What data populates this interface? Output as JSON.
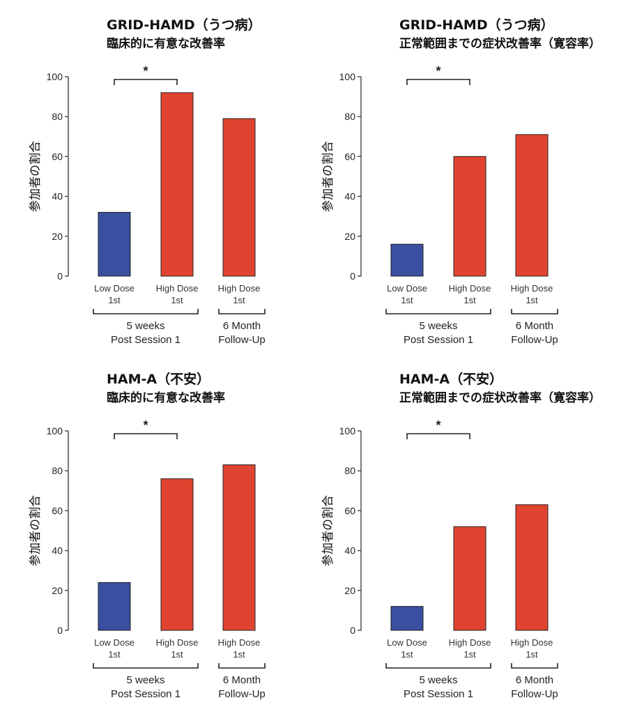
{
  "colors": {
    "low_dose": "#3a4fa0",
    "high_dose": "#e04430",
    "axis": "#333333",
    "bar_stroke": "#222222"
  },
  "group_labels": {
    "g1_line1": "5 weeks",
    "g1_line2": "Post Session 1",
    "g2_line1": "6 Month",
    "g2_line2": "Follow-Up"
  },
  "chart_data": [
    {
      "type": "bar",
      "title": "GRID-HAMD（うつ病）",
      "subtitle": "臨床的に有意な改善率",
      "ylabel": "参加者の割合",
      "ylim": [
        0,
        100
      ],
      "yticks": [
        "0",
        "20",
        "40",
        "60",
        "80",
        "100"
      ],
      "categories": [
        [
          "Low Dose",
          "1st"
        ],
        [
          "High Dose",
          "1st"
        ],
        [
          "High Dose",
          "1st"
        ]
      ],
      "values": [
        32,
        92,
        79
      ],
      "significance": "*"
    },
    {
      "type": "bar",
      "title": "GRID-HAMD（うつ病）",
      "subtitle": "正常範囲までの症状改善率（寛容率）",
      "ylabel": "参加者の割合",
      "ylim": [
        0,
        100
      ],
      "yticks": [
        "0",
        "20",
        "40",
        "60",
        "80",
        "100"
      ],
      "categories": [
        [
          "Low Dose",
          "1st"
        ],
        [
          "High Dose",
          "1st"
        ],
        [
          "High Dose",
          "1st"
        ]
      ],
      "values": [
        16,
        60,
        71
      ],
      "significance": "*"
    },
    {
      "type": "bar",
      "title": "HAM-A（不安）",
      "subtitle": "臨床的に有意な改善率",
      "ylabel": "参加者の割合",
      "ylim": [
        0,
        100
      ],
      "yticks": [
        "0",
        "20",
        "40",
        "60",
        "80",
        "100"
      ],
      "categories": [
        [
          "Low Dose",
          "1st"
        ],
        [
          "High Dose",
          "1st"
        ],
        [
          "High Dose",
          "1st"
        ]
      ],
      "values": [
        24,
        76,
        83
      ],
      "significance": "*"
    },
    {
      "type": "bar",
      "title": "HAM-A（不安）",
      "subtitle": "正常範囲までの症状改善率（寛容率）",
      "ylabel": "参加者の割合",
      "ylim": [
        0,
        100
      ],
      "yticks": [
        "0",
        "20",
        "40",
        "60",
        "80",
        "100"
      ],
      "categories": [
        [
          "Low Dose",
          "1st"
        ],
        [
          "High Dose",
          "1st"
        ],
        [
          "High Dose",
          "1st"
        ]
      ],
      "values": [
        12,
        52,
        63
      ],
      "significance": "*"
    }
  ]
}
